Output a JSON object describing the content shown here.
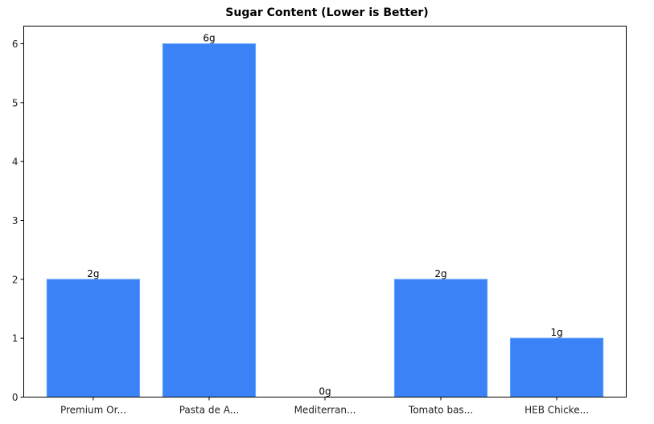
{
  "chart_data": {
    "type": "bar",
    "title": "Sugar Content (Lower is Better)",
    "xlabel": "",
    "ylabel": "",
    "categories": [
      "Premium Or...",
      "Pasta de A...",
      "Mediterran...",
      "Tomato bas...",
      "HEB Chicke..."
    ],
    "values": [
      2,
      6,
      0,
      2,
      1
    ],
    "value_labels": [
      "2g",
      "6g",
      "0g",
      "2g",
      "1g"
    ],
    "ylim": [
      0,
      6.3
    ],
    "yticks": [
      0,
      1,
      2,
      3,
      4,
      5,
      6
    ],
    "grid": false,
    "legend": null,
    "bar_color": "#3b82f6",
    "bar_edge_color": "#60a5fa"
  }
}
